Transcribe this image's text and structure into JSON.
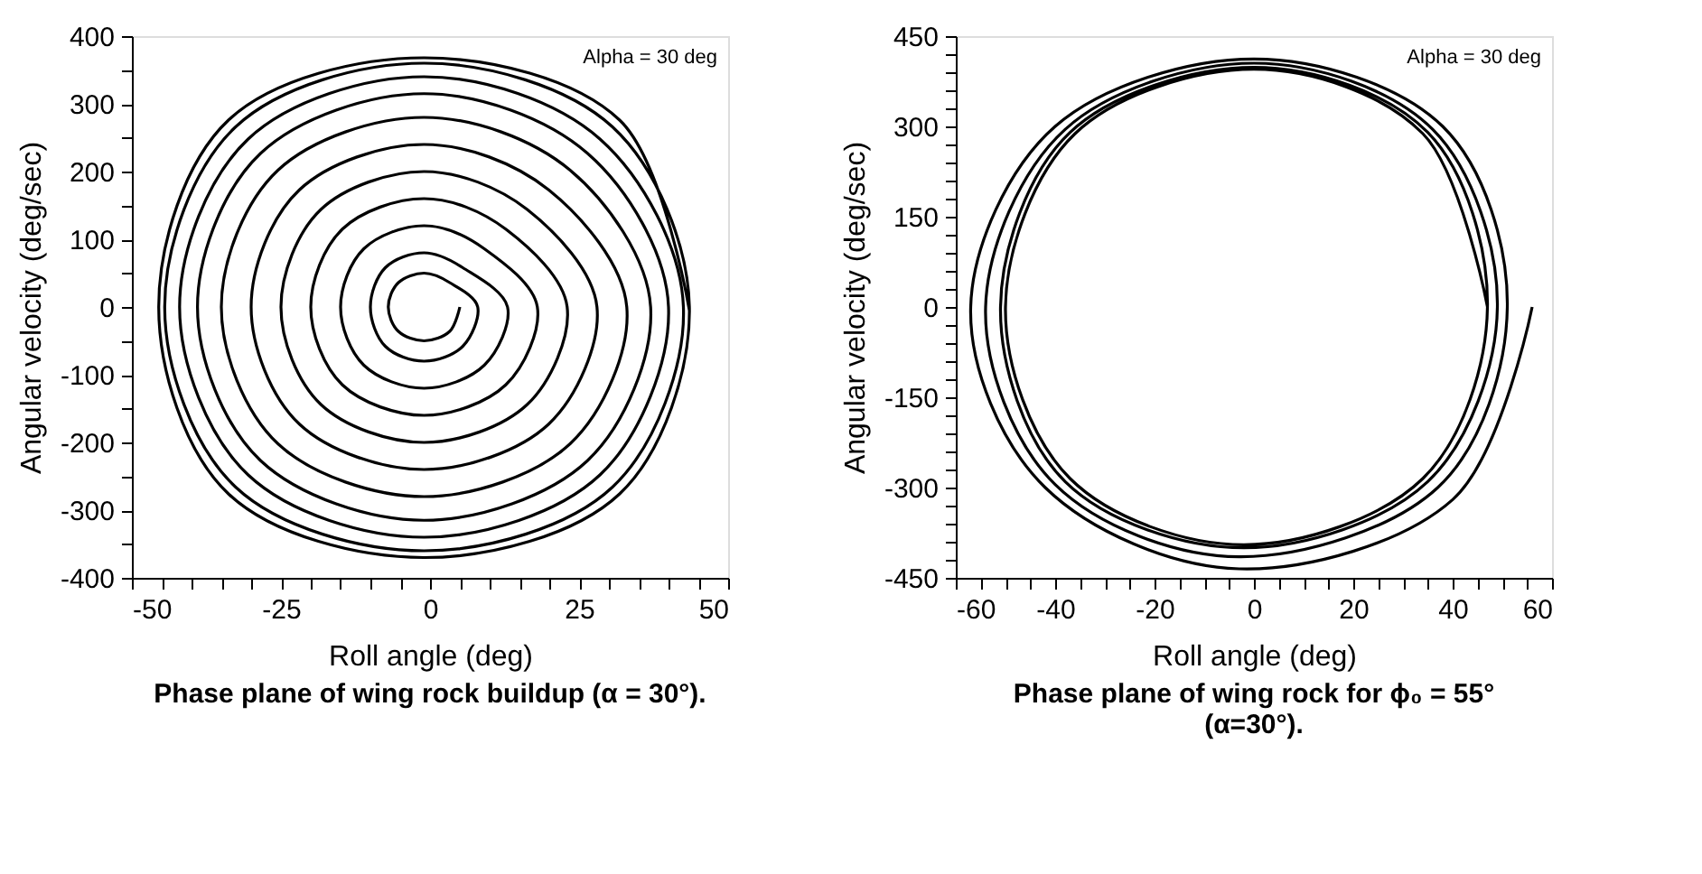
{
  "chart_data": [
    {
      "type": "line",
      "title": "Phase plane of wing rock buildup (α = 30°).",
      "xlabel": "Roll angle (deg)",
      "ylabel": "Angular velocity (deg/sec)",
      "annotations": [
        "Alpha = 30 deg"
      ],
      "xlim": [
        -50,
        50
      ],
      "ylim": [
        -400,
        400
      ],
      "xticks": [
        -50,
        {
          "value": -45,
          "label": null
        },
        {
          "value": -40,
          "label": null
        },
        {
          "value": -35,
          "label": null
        },
        {
          "value": -30,
          "label": null
        },
        -25,
        {
          "value": -20,
          "label": null
        },
        {
          "value": -15,
          "label": null
        },
        {
          "value": -10,
          "label": null
        },
        {
          "value": -5,
          "label": null
        },
        0,
        {
          "value": 5,
          "label": null
        },
        {
          "value": 10,
          "label": null
        },
        {
          "value": 15,
          "label": null
        },
        {
          "value": 20,
          "label": null
        },
        25,
        {
          "value": 30,
          "label": null
        },
        {
          "value": 35,
          "label": null
        },
        {
          "value": 40,
          "label": null
        },
        {
          "value": 45,
          "label": null
        },
        50
      ],
      "yticks": [
        -400,
        {
          "value": -350,
          "label": null
        },
        -300,
        {
          "value": -250,
          "label": null
        },
        -200,
        {
          "value": -150,
          "label": null
        },
        -100,
        {
          "value": -50,
          "label": null
        },
        0,
        {
          "value": 50,
          "label": null
        },
        100,
        {
          "value": 150,
          "label": null
        },
        200,
        {
          "value": 250,
          "label": null
        },
        300,
        {
          "value": 350,
          "label": null
        },
        400
      ],
      "series": [
        {
          "color": "#000000",
          "x": [
            5,
            3.3,
            -1,
            -5.3,
            -7,
            -5.3,
            -1,
            3.3,
            8,
            5.5,
            -1,
            -7.5,
            -10,
            -7.5,
            -1,
            5.5,
            13,
            9.1,
            -1,
            -11.1,
            -15,
            -11.1,
            -1,
            9.1,
            18,
            12.7,
            -1,
            -14.7,
            -20,
            -14.7,
            -1,
            12.7,
            23,
            16.3,
            -1,
            -18.3,
            -25,
            -18.3,
            -1,
            16.3,
            28,
            19.9,
            -1,
            -21.9,
            -30,
            -21.9,
            -1,
            19.9,
            33,
            23.5,
            -1,
            -25.5,
            -35,
            -25.5,
            -1,
            23.5,
            37,
            26.4,
            -1,
            -28.4,
            -39,
            -28.4,
            -1,
            26.4,
            40,
            28.5,
            -1,
            -30.5,
            -42,
            -30.5,
            -1,
            28.5,
            42.5,
            30.6,
            -1,
            -32.6,
            -44.5,
            -32.6,
            -1,
            30.6,
            43.5,
            31.8,
            -1,
            -33.8,
            -45.5,
            -33.8,
            -1,
            31.8,
            43.5
          ],
          "values": [
            0,
            -36,
            -50,
            -36,
            0,
            36,
            50,
            36,
            0,
            -58,
            -80,
            -58,
            0,
            58,
            80,
            58,
            0,
            -86,
            -120,
            -86,
            0,
            86,
            120,
            86,
            0,
            -115,
            -160,
            -115,
            0,
            115,
            160,
            115,
            0,
            -144,
            -200,
            -144,
            0,
            144,
            200,
            144,
            0,
            -173,
            -240,
            -173,
            0,
            173,
            240,
            173,
            0,
            -202,
            -280,
            -202,
            0,
            202,
            280,
            202,
            0,
            -227,
            -315,
            -227,
            0,
            227,
            315,
            227,
            0,
            -248,
            -340,
            -248,
            0,
            248,
            340,
            248,
            0,
            -266,
            -360,
            -266,
            0,
            266,
            360,
            266,
            0,
            -276,
            -370,
            -276,
            0,
            276,
            368,
            276,
            -5
          ]
        }
      ]
    },
    {
      "type": "line",
      "title": "Phase plane of wing rock for ϕ₀ =  55°\n(α=30°).",
      "xlabel": "Roll angle (deg)",
      "ylabel": "Angular velocity (deg/sec)",
      "annotations": [
        "Alpha = 30 deg"
      ],
      "xlim": [
        -60,
        60
      ],
      "ylim": [
        -450,
        450
      ],
      "xticks": [
        -60,
        {
          "value": -55,
          "label": null
        },
        {
          "value": -50,
          "label": null
        },
        {
          "value": -45,
          "label": null
        },
        -40,
        {
          "value": -35,
          "label": null
        },
        {
          "value": -30,
          "label": null
        },
        {
          "value": -25,
          "label": null
        },
        -20,
        {
          "value": -15,
          "label": null
        },
        {
          "value": -10,
          "label": null
        },
        {
          "value": -5,
          "label": null
        },
        0,
        {
          "value": 5,
          "label": null
        },
        {
          "value": 10,
          "label": null
        },
        {
          "value": 15,
          "label": null
        },
        20,
        {
          "value": 25,
          "label": null
        },
        {
          "value": 30,
          "label": null
        },
        {
          "value": 35,
          "label": null
        },
        40,
        {
          "value": 45,
          "label": null
        },
        {
          "value": 50,
          "label": null
        },
        {
          "value": 55,
          "label": null
        },
        60
      ],
      "yticks": [
        -450,
        {
          "value": -420,
          "label": null
        },
        {
          "value": -390,
          "label": null
        },
        {
          "value": -360,
          "label": null
        },
        {
          "value": -330,
          "label": null
        },
        -300,
        {
          "value": -270,
          "label": null
        },
        {
          "value": -240,
          "label": null
        },
        {
          "value": -210,
          "label": null
        },
        {
          "value": -180,
          "label": null
        },
        -150,
        {
          "value": -120,
          "label": null
        },
        {
          "value": -90,
          "label": null
        },
        {
          "value": -60,
          "label": null
        },
        {
          "value": -30,
          "label": null
        },
        0,
        {
          "value": 30,
          "label": null
        },
        {
          "value": 60,
          "label": null
        },
        {
          "value": 90,
          "label": null
        },
        {
          "value": 120,
          "label": null
        },
        150,
        {
          "value": 180,
          "label": null
        },
        {
          "value": 210,
          "label": null
        },
        {
          "value": 240,
          "label": null
        },
        {
          "value": 270,
          "label": null
        },
        300,
        {
          "value": 330,
          "label": null
        },
        {
          "value": 360,
          "label": null
        },
        {
          "value": 390,
          "label": null
        },
        {
          "value": 420,
          "label": null
        },
        450
      ],
      "series": [
        {
          "color": "#000000",
          "x": [
            56,
            40,
            -3,
            -42,
            -57,
            -40,
            0,
            38,
            51,
            37,
            -3,
            -40,
            -54,
            -38,
            0,
            36,
            49,
            35,
            -2,
            -38,
            -51,
            -37,
            0,
            35,
            47,
            34,
            -2,
            -37,
            -50,
            -36,
            0,
            34,
            47
          ],
          "values": [
            0,
            -320,
            -435,
            -300,
            0,
            300,
            412,
            300,
            0,
            -300,
            -415,
            -295,
            0,
            295,
            405,
            295,
            0,
            -290,
            -400,
            -290,
            0,
            290,
            398,
            290,
            0,
            -285,
            -395,
            -285,
            0,
            288,
            395,
            288,
            0
          ]
        }
      ]
    }
  ]
}
